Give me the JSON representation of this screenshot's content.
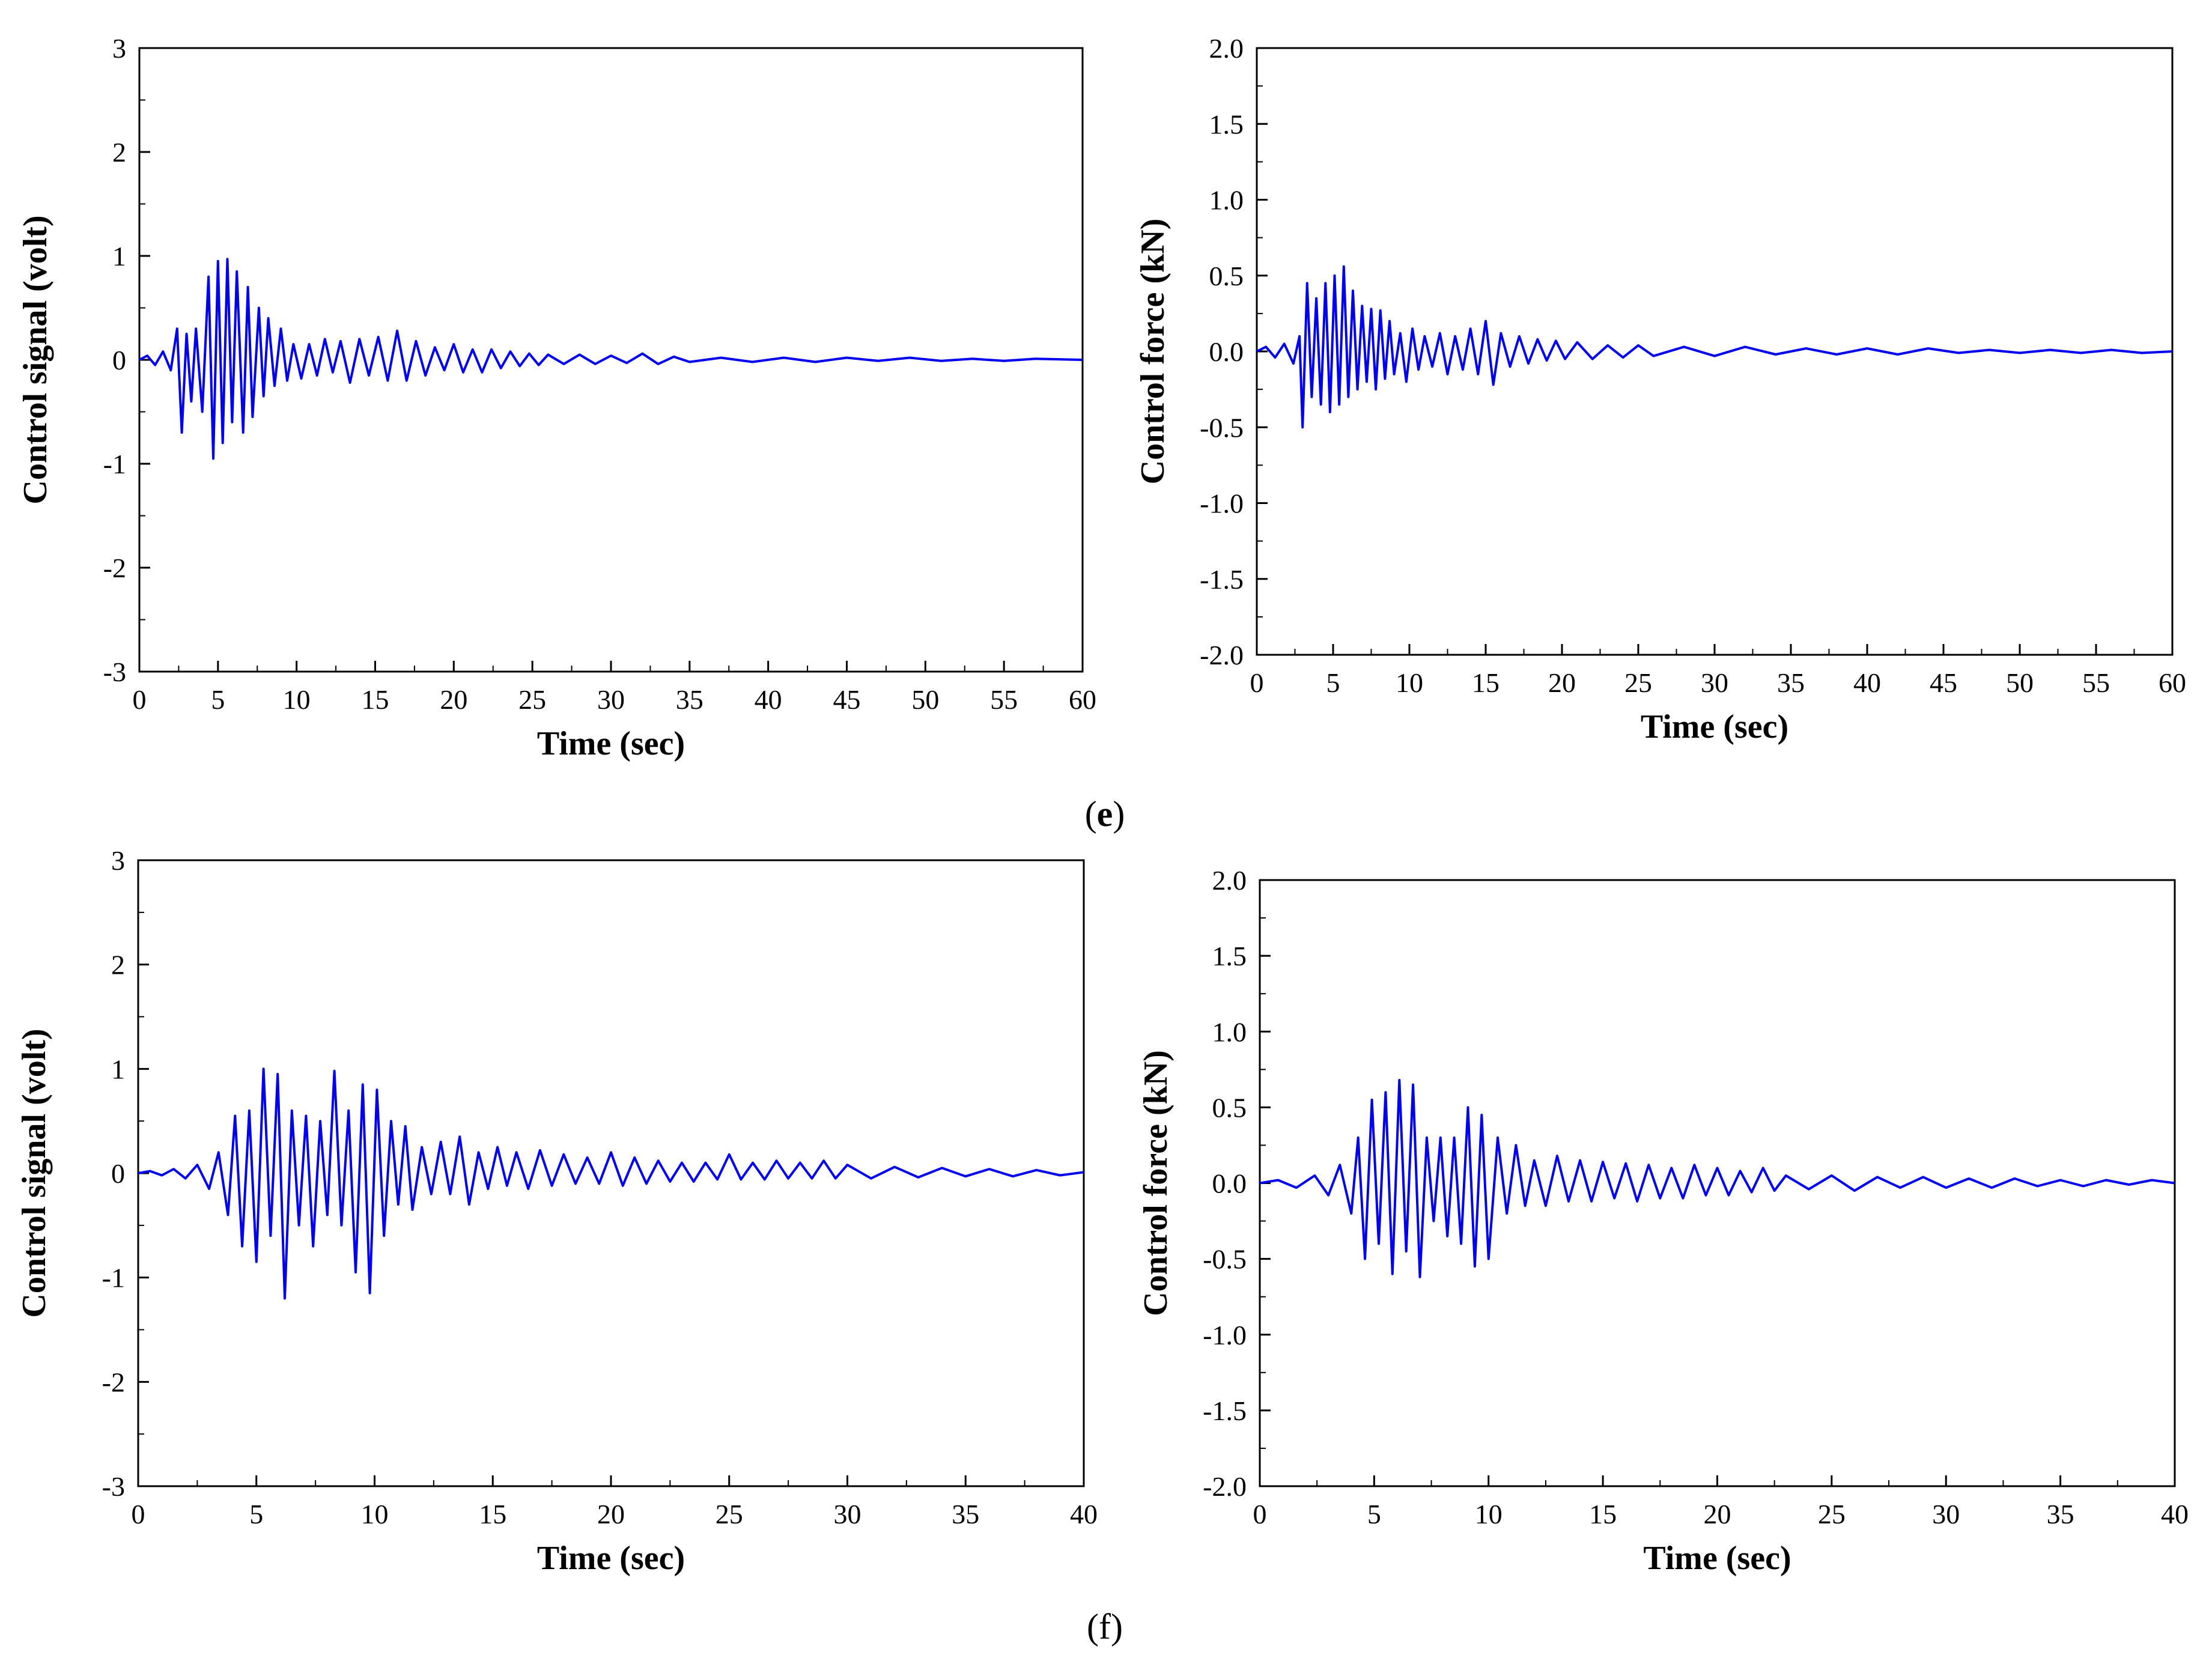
{
  "figure": {
    "panel_e_label": {
      "open": "(",
      "letter": "e",
      "close": ")"
    },
    "panel_f_label": {
      "open": "(",
      "letter": "f",
      "close": ")"
    }
  },
  "colors": {
    "series": "#0000ee",
    "axis": "#000000"
  },
  "chart_data": [
    {
      "id": "e-signal",
      "type": "line",
      "title": "",
      "xlabel": "Time (sec)",
      "ylabel": "Control signal (volt)",
      "xlim": [
        0,
        60
      ],
      "ylim": [
        -3,
        3
      ],
      "xticks": [
        "0",
        "5",
        "10",
        "15",
        "20",
        "25",
        "30",
        "35",
        "40",
        "45",
        "50",
        "55",
        "60"
      ],
      "yticks": [
        "-3",
        "-2",
        "-1",
        "0",
        "1",
        "2",
        "3"
      ],
      "series": [
        {
          "name": "Control signal",
          "color": "#0000ee",
          "x": [
            0,
            0.5,
            1,
            1.5,
            2,
            2.4,
            2.7,
            3.0,
            3.3,
            3.6,
            4.0,
            4.4,
            4.7,
            5.0,
            5.3,
            5.6,
            5.9,
            6.2,
            6.6,
            6.9,
            7.2,
            7.6,
            7.9,
            8.2,
            8.6,
            9.0,
            9.4,
            9.8,
            10.3,
            10.8,
            11.3,
            11.8,
            12.3,
            12.8,
            13.4,
            14.0,
            14.6,
            15.2,
            15.8,
            16.4,
            17.0,
            17.6,
            18.2,
            18.8,
            19.4,
            20.0,
            20.6,
            21.2,
            21.8,
            22.4,
            23.0,
            23.6,
            24.2,
            24.8,
            25.4,
            26.0,
            27.0,
            28.0,
            29.0,
            30.0,
            31.0,
            32.0,
            33.0,
            34.0,
            35.0,
            37.0,
            39.0,
            41.0,
            43.0,
            45.0,
            47.0,
            49.0,
            51.0,
            53.0,
            55.0,
            57.0,
            60.0
          ],
          "y": [
            0,
            0.04,
            -0.05,
            0.08,
            -0.1,
            0.3,
            -0.7,
            0.25,
            -0.4,
            0.3,
            -0.5,
            0.8,
            -0.95,
            0.95,
            -0.8,
            0.97,
            -0.6,
            0.85,
            -0.7,
            0.7,
            -0.55,
            0.5,
            -0.35,
            0.4,
            -0.25,
            0.3,
            -0.2,
            0.15,
            -0.18,
            0.15,
            -0.15,
            0.2,
            -0.12,
            0.18,
            -0.22,
            0.2,
            -0.15,
            0.22,
            -0.2,
            0.28,
            -0.2,
            0.18,
            -0.15,
            0.12,
            -0.1,
            0.15,
            -0.12,
            0.1,
            -0.12,
            0.1,
            -0.08,
            0.08,
            -0.06,
            0.06,
            -0.05,
            0.05,
            -0.04,
            0.05,
            -0.04,
            0.04,
            -0.03,
            0.06,
            -0.04,
            0.03,
            -0.02,
            0.02,
            -0.02,
            0.02,
            -0.02,
            0.02,
            -0.01,
            0.02,
            -0.01,
            0.01,
            -0.01,
            0.01,
            0
          ]
        }
      ]
    },
    {
      "id": "e-force",
      "type": "line",
      "title": "",
      "xlabel": "Time (sec)",
      "ylabel": "Control force (kN)",
      "xlim": [
        0,
        60
      ],
      "ylim": [
        -2.0,
        2.0
      ],
      "xticks": [
        "0",
        "5",
        "10",
        "15",
        "20",
        "25",
        "30",
        "35",
        "40",
        "45",
        "50",
        "55",
        "60"
      ],
      "yticks": [
        "-2.0",
        "-1.5",
        "-1.0",
        "-0.5",
        "0.0",
        "0.5",
        "1.0",
        "1.5",
        "2.0"
      ],
      "series": [
        {
          "name": "Control force",
          "color": "#0000ee",
          "x": [
            0,
            0.6,
            1.2,
            1.8,
            2.4,
            2.8,
            3.0,
            3.3,
            3.6,
            3.9,
            4.2,
            4.5,
            4.8,
            5.1,
            5.4,
            5.7,
            6.0,
            6.3,
            6.6,
            6.9,
            7.2,
            7.5,
            7.8,
            8.1,
            8.4,
            8.7,
            9.0,
            9.4,
            9.8,
            10.2,
            10.6,
            11.0,
            11.5,
            12.0,
            12.5,
            13.0,
            13.5,
            14.0,
            14.5,
            15.0,
            15.5,
            16.0,
            16.6,
            17.2,
            17.8,
            18.4,
            19.0,
            19.6,
            20.2,
            21.0,
            22.0,
            23.0,
            24.0,
            25.0,
            26.0,
            28.0,
            30.0,
            32.0,
            34.0,
            36.0,
            38.0,
            40.0,
            42.0,
            44.0,
            46.0,
            48.0,
            50.0,
            52.0,
            54.0,
            56.0,
            58.0,
            60.0
          ],
          "y": [
            0,
            0.03,
            -0.04,
            0.05,
            -0.08,
            0.1,
            -0.5,
            0.45,
            -0.3,
            0.35,
            -0.35,
            0.45,
            -0.4,
            0.5,
            -0.35,
            0.56,
            -0.3,
            0.4,
            -0.25,
            0.3,
            -0.2,
            0.28,
            -0.25,
            0.27,
            -0.18,
            0.2,
            -0.15,
            0.12,
            -0.2,
            0.15,
            -0.12,
            0.1,
            -0.1,
            0.12,
            -0.15,
            0.1,
            -0.12,
            0.15,
            -0.15,
            0.2,
            -0.22,
            0.12,
            -0.1,
            0.1,
            -0.08,
            0.08,
            -0.06,
            0.07,
            -0.05,
            0.06,
            -0.05,
            0.04,
            -0.04,
            0.04,
            -0.03,
            0.03,
            -0.03,
            0.03,
            -0.02,
            0.02,
            -0.02,
            0.02,
            -0.02,
            0.02,
            -0.01,
            0.01,
            -0.01,
            0.01,
            -0.01,
            0.01,
            -0.01,
            0
          ]
        }
      ]
    },
    {
      "id": "f-signal",
      "type": "line",
      "title": "",
      "xlabel": "Time (sec)",
      "ylabel": "Control signal (volt)",
      "xlim": [
        0,
        40
      ],
      "ylim": [
        -3,
        3
      ],
      "xticks": [
        "0",
        "5",
        "10",
        "15",
        "20",
        "25",
        "30",
        "35",
        "40"
      ],
      "yticks": [
        "-3",
        "-2",
        "-1",
        "0",
        "1",
        "2",
        "3"
      ],
      "series": [
        {
          "name": "Control signal",
          "color": "#0000ee",
          "x": [
            0,
            0.5,
            1,
            1.5,
            2,
            2.5,
            3,
            3.4,
            3.8,
            4.1,
            4.4,
            4.7,
            5.0,
            5.3,
            5.6,
            5.9,
            6.2,
            6.5,
            6.8,
            7.1,
            7.4,
            7.7,
            8.0,
            8.3,
            8.6,
            8.9,
            9.2,
            9.5,
            9.8,
            10.1,
            10.4,
            10.7,
            11.0,
            11.3,
            11.6,
            12.0,
            12.4,
            12.8,
            13.2,
            13.6,
            14.0,
            14.4,
            14.8,
            15.2,
            15.6,
            16.0,
            16.5,
            17.0,
            17.5,
            18.0,
            18.5,
            19.0,
            19.5,
            20.0,
            20.5,
            21.0,
            21.5,
            22.0,
            22.5,
            23.0,
            23.5,
            24.0,
            24.5,
            25.0,
            25.5,
            26.0,
            26.5,
            27.0,
            27.5,
            28.0,
            28.5,
            29.0,
            29.5,
            30.0,
            31.0,
            32.0,
            33.0,
            34.0,
            35.0,
            36.0,
            37.0,
            38.0,
            39.0,
            40.0
          ],
          "y": [
            0,
            0.02,
            -0.02,
            0.04,
            -0.05,
            0.08,
            -0.15,
            0.2,
            -0.4,
            0.55,
            -0.7,
            0.6,
            -0.85,
            1.0,
            -0.6,
            0.95,
            -1.2,
            0.6,
            -0.5,
            0.55,
            -0.7,
            0.5,
            -0.4,
            0.98,
            -0.5,
            0.6,
            -0.95,
            0.85,
            -1.15,
            0.8,
            -0.6,
            0.5,
            -0.3,
            0.45,
            -0.35,
            0.25,
            -0.2,
            0.3,
            -0.2,
            0.35,
            -0.3,
            0.2,
            -0.15,
            0.25,
            -0.12,
            0.2,
            -0.15,
            0.22,
            -0.12,
            0.18,
            -0.1,
            0.15,
            -0.1,
            0.2,
            -0.12,
            0.15,
            -0.1,
            0.12,
            -0.08,
            0.1,
            -0.08,
            0.1,
            -0.06,
            0.18,
            -0.06,
            0.1,
            -0.06,
            0.12,
            -0.05,
            0.1,
            -0.05,
            0.12,
            -0.05,
            0.08,
            -0.05,
            0.06,
            -0.04,
            0.05,
            -0.03,
            0.04,
            -0.03,
            0.03,
            -0.02,
            0.01
          ]
        }
      ]
    },
    {
      "id": "f-force",
      "type": "line",
      "title": "",
      "xlabel": "Time (sec)",
      "ylabel": "Control force (kN)",
      "xlim": [
        0,
        40
      ],
      "ylim": [
        -2.0,
        2.0
      ],
      "xticks": [
        "0",
        "5",
        "10",
        "15",
        "20",
        "25",
        "30",
        "35",
        "40"
      ],
      "yticks": [
        "-2.0",
        "-1.5",
        "-1.0",
        "-0.5",
        "0.0",
        "0.5",
        "1.0",
        "1.5",
        "2.0"
      ],
      "series": [
        {
          "name": "Control force",
          "color": "#0000ee",
          "x": [
            0,
            0.8,
            1.6,
            2.4,
            3.0,
            3.5,
            4.0,
            4.3,
            4.6,
            4.9,
            5.2,
            5.5,
            5.8,
            6.1,
            6.4,
            6.7,
            7.0,
            7.3,
            7.6,
            7.9,
            8.2,
            8.5,
            8.8,
            9.1,
            9.4,
            9.7,
            10.0,
            10.4,
            10.8,
            11.2,
            11.6,
            12.0,
            12.5,
            13.0,
            13.5,
            14.0,
            14.5,
            15.0,
            15.5,
            16.0,
            16.5,
            17.0,
            17.5,
            18.0,
            18.5,
            19.0,
            19.5,
            20.0,
            20.5,
            21.0,
            21.5,
            22.0,
            22.5,
            23.0,
            24.0,
            25.0,
            26.0,
            27.0,
            28.0,
            29.0,
            30.0,
            31.0,
            32.0,
            33.0,
            34.0,
            35.0,
            36.0,
            37.0,
            38.0,
            39.0,
            40.0
          ],
          "y": [
            0,
            0.02,
            -0.03,
            0.05,
            -0.08,
            0.12,
            -0.2,
            0.3,
            -0.5,
            0.55,
            -0.4,
            0.6,
            -0.6,
            0.68,
            -0.45,
            0.65,
            -0.62,
            0.3,
            -0.25,
            0.3,
            -0.35,
            0.3,
            -0.4,
            0.5,
            -0.55,
            0.45,
            -0.5,
            0.3,
            -0.2,
            0.25,
            -0.15,
            0.15,
            -0.15,
            0.18,
            -0.12,
            0.15,
            -0.12,
            0.14,
            -0.1,
            0.13,
            -0.12,
            0.12,
            -0.1,
            0.1,
            -0.1,
            0.12,
            -0.08,
            0.1,
            -0.08,
            0.08,
            -0.06,
            0.1,
            -0.05,
            0.05,
            -0.04,
            0.05,
            -0.05,
            0.04,
            -0.03,
            0.04,
            -0.03,
            0.03,
            -0.03,
            0.03,
            -0.02,
            0.02,
            -0.02,
            0.02,
            -0.01,
            0.02,
            0
          ]
        }
      ]
    }
  ]
}
